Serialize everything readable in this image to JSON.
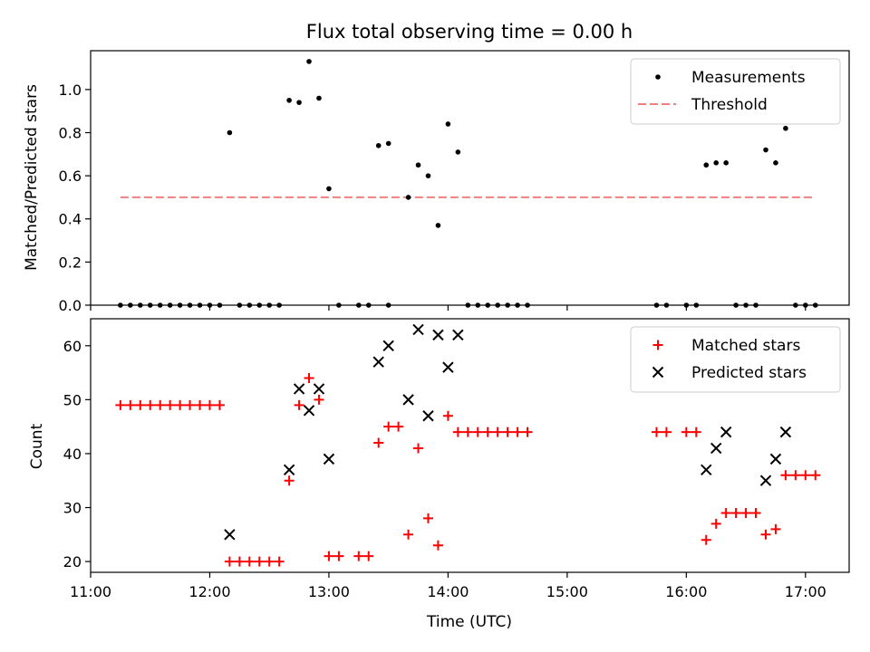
{
  "chart_data": [
    {
      "type": "scatter",
      "title": "Flux total observing time = 0.00 h",
      "xlabel": "",
      "ylabel": "Matched/Predicted stars",
      "ylim": [
        0,
        1.18
      ],
      "yticks": [
        "0.0",
        "0.2",
        "0.4",
        "0.6",
        "0.8",
        "1.0"
      ],
      "ytick_values": [
        0,
        0.2,
        0.4,
        0.6,
        0.8,
        1.0
      ],
      "x_axis": "time",
      "xlim": [
        "11:00",
        "17:22"
      ],
      "xticks": [
        "11:00",
        "12:00",
        "13:00",
        "14:00",
        "15:00",
        "16:00",
        "17:00"
      ],
      "legend_position": "top-right",
      "threshold": {
        "name": "Threshold",
        "value": 0.5,
        "x_start": "11:15",
        "x_end": "17:05",
        "color": "#f08080"
      },
      "series": [
        {
          "name": "Measurements",
          "color": "#000000",
          "points": [
            [
              "11:15",
              0
            ],
            [
              "11:20",
              0
            ],
            [
              "11:25",
              0
            ],
            [
              "11:30",
              0
            ],
            [
              "11:35",
              0
            ],
            [
              "11:40",
              0
            ],
            [
              "11:45",
              0
            ],
            [
              "11:50",
              0
            ],
            [
              "11:55",
              0
            ],
            [
              "12:00",
              0
            ],
            [
              "12:05",
              0
            ],
            [
              "12:10",
              0.8
            ],
            [
              "12:15",
              0
            ],
            [
              "12:20",
              0
            ],
            [
              "12:25",
              0
            ],
            [
              "12:30",
              0
            ],
            [
              "12:35",
              0
            ],
            [
              "12:40",
              0.95
            ],
            [
              "12:45",
              0.94
            ],
            [
              "12:50",
              1.13
            ],
            [
              "12:55",
              0.96
            ],
            [
              "13:00",
              0.54
            ],
            [
              "13:05",
              0
            ],
            [
              "13:15",
              0
            ],
            [
              "13:20",
              0
            ],
            [
              "13:30",
              0
            ],
            [
              "13:25",
              0.74
            ],
            [
              "13:30",
              0.75
            ],
            [
              "13:40",
              0.5
            ],
            [
              "13:45",
              0.65
            ],
            [
              "13:50",
              0.6
            ],
            [
              "13:55",
              0.37
            ],
            [
              "14:00",
              0.84
            ],
            [
              "14:05",
              0.71
            ],
            [
              "14:10",
              0
            ],
            [
              "14:15",
              0
            ],
            [
              "14:20",
              0
            ],
            [
              "14:25",
              0
            ],
            [
              "14:30",
              0
            ],
            [
              "14:35",
              0
            ],
            [
              "14:40",
              0
            ],
            [
              "15:45",
              0
            ],
            [
              "15:50",
              0
            ],
            [
              "16:00",
              0
            ],
            [
              "16:05",
              0
            ],
            [
              "16:10",
              0.65
            ],
            [
              "16:15",
              0.66
            ],
            [
              "16:20",
              0.66
            ],
            [
              "16:25",
              0
            ],
            [
              "16:30",
              0
            ],
            [
              "16:35",
              0
            ],
            [
              "16:40",
              0.72
            ],
            [
              "16:45",
              0.66
            ],
            [
              "16:50",
              0.82
            ],
            [
              "16:55",
              0
            ],
            [
              "17:00",
              0
            ],
            [
              "17:05",
              0
            ]
          ]
        }
      ]
    },
    {
      "type": "scatter",
      "title": "",
      "xlabel": "Time (UTC)",
      "ylabel": "Count",
      "ylim": [
        18,
        65
      ],
      "yticks": [
        "20",
        "30",
        "40",
        "50",
        "60"
      ],
      "ytick_values": [
        20,
        30,
        40,
        50,
        60
      ],
      "x_axis": "time",
      "xlim": [
        "11:00",
        "17:22"
      ],
      "xticks": [
        "11:00",
        "12:00",
        "13:00",
        "14:00",
        "15:00",
        "16:00",
        "17:00"
      ],
      "legend_position": "top-right",
      "series": [
        {
          "name": "Matched stars",
          "marker": "plus",
          "color": "#ff0000",
          "points": [
            [
              "11:15",
              49
            ],
            [
              "11:20",
              49
            ],
            [
              "11:25",
              49
            ],
            [
              "11:30",
              49
            ],
            [
              "11:35",
              49
            ],
            [
              "11:40",
              49
            ],
            [
              "11:45",
              49
            ],
            [
              "11:50",
              49
            ],
            [
              "11:55",
              49
            ],
            [
              "12:00",
              49
            ],
            [
              "12:05",
              49
            ],
            [
              "12:10",
              20
            ],
            [
              "12:15",
              20
            ],
            [
              "12:20",
              20
            ],
            [
              "12:25",
              20
            ],
            [
              "12:30",
              20
            ],
            [
              "12:35",
              20
            ],
            [
              "12:40",
              35
            ],
            [
              "12:45",
              49
            ],
            [
              "12:50",
              54
            ],
            [
              "12:55",
              50
            ],
            [
              "13:00",
              21
            ],
            [
              "13:05",
              21
            ],
            [
              "13:15",
              21
            ],
            [
              "13:20",
              21
            ],
            [
              "13:25",
              42
            ],
            [
              "13:30",
              45
            ],
            [
              "13:35",
              45
            ],
            [
              "13:40",
              25
            ],
            [
              "13:45",
              41
            ],
            [
              "13:50",
              28
            ],
            [
              "13:55",
              23
            ],
            [
              "14:00",
              47
            ],
            [
              "14:05",
              44
            ],
            [
              "14:10",
              44
            ],
            [
              "14:15",
              44
            ],
            [
              "14:20",
              44
            ],
            [
              "14:25",
              44
            ],
            [
              "14:30",
              44
            ],
            [
              "14:35",
              44
            ],
            [
              "14:40",
              44
            ],
            [
              "15:45",
              44
            ],
            [
              "15:50",
              44
            ],
            [
              "16:00",
              44
            ],
            [
              "16:05",
              44
            ],
            [
              "16:10",
              24
            ],
            [
              "16:15",
              27
            ],
            [
              "16:20",
              29
            ],
            [
              "16:25",
              29
            ],
            [
              "16:30",
              29
            ],
            [
              "16:35",
              29
            ],
            [
              "16:40",
              25
            ],
            [
              "16:45",
              26
            ],
            [
              "16:50",
              36
            ],
            [
              "16:55",
              36
            ],
            [
              "17:00",
              36
            ],
            [
              "17:05",
              36
            ]
          ]
        },
        {
          "name": "Predicted stars",
          "marker": "x",
          "color": "#000000",
          "points": [
            [
              "12:10",
              25
            ],
            [
              "12:40",
              37
            ],
            [
              "12:45",
              52
            ],
            [
              "12:50",
              48
            ],
            [
              "12:55",
              52
            ],
            [
              "13:00",
              39
            ],
            [
              "13:25",
              57
            ],
            [
              "13:30",
              60
            ],
            [
              "13:40",
              50
            ],
            [
              "13:45",
              63
            ],
            [
              "13:50",
              47
            ],
            [
              "13:55",
              62
            ],
            [
              "14:00",
              56
            ],
            [
              "14:05",
              62
            ],
            [
              "16:10",
              37
            ],
            [
              "16:15",
              41
            ],
            [
              "16:20",
              44
            ],
            [
              "16:40",
              35
            ],
            [
              "16:45",
              39
            ],
            [
              "16:50",
              44
            ]
          ]
        }
      ]
    }
  ]
}
